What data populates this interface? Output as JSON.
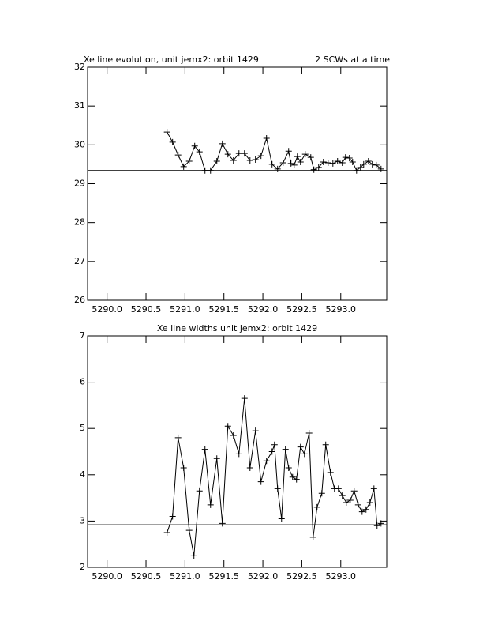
{
  "chart_data": [
    {
      "type": "line",
      "title": "Xe line evolution, unit jemx2: orbit 1429",
      "subtitle": "2 SCWs at a time",
      "x": [
        5290.77,
        5290.841,
        5290.912,
        5290.983,
        5291.054,
        5291.125,
        5291.186,
        5291.257,
        5291.328,
        5291.409,
        5291.48,
        5291.551,
        5291.622,
        5291.693,
        5291.764,
        5291.835,
        5291.905,
        5291.976,
        5292.047,
        5292.118,
        5292.189,
        5292.26,
        5292.331,
        5292.361,
        5292.402,
        5292.443,
        5292.483,
        5292.544,
        5292.615,
        5292.655,
        5292.716,
        5292.777,
        5292.838,
        5292.899,
        5292.959,
        5293.02,
        5293.061,
        5293.111,
        5293.152,
        5293.203,
        5293.253,
        5293.294,
        5293.355,
        5293.405,
        5293.456,
        5293.517
      ],
      "series": [
        {
          "color": "#000000",
          "marker": "plus",
          "values": [
            30.33,
            30.07,
            29.74,
            29.44,
            29.58,
            29.97,
            29.82,
            29.34,
            29.34,
            29.58,
            30.03,
            29.76,
            29.6,
            29.78,
            29.78,
            29.6,
            29.62,
            29.72,
            30.17,
            29.5,
            29.38,
            29.54,
            29.84,
            29.52,
            29.48,
            29.7,
            29.56,
            29.76,
            29.68,
            29.36,
            29.42,
            29.56,
            29.54,
            29.52,
            29.58,
            29.54,
            29.68,
            29.66,
            29.56,
            29.34,
            29.42,
            29.5,
            29.58,
            29.5,
            29.48,
            29.38
          ]
        }
      ],
      "hline": 29.34,
      "xlim": [
        5289.75,
        5293.59
      ],
      "xticks": [
        {
          "value": 5290,
          "label": "5290.0"
        },
        {
          "value": 5290.5,
          "label": "5290.5"
        },
        {
          "value": 5291,
          "label": "5291.0"
        },
        {
          "value": 5291.5,
          "label": "5291.5"
        },
        {
          "value": 5292,
          "label": "5292.0"
        },
        {
          "value": 5292.5,
          "label": "5292.5"
        },
        {
          "value": 5293,
          "label": "5293.0"
        }
      ],
      "ylim": [
        26,
        32
      ],
      "yticks": [
        26,
        27,
        28,
        29,
        30,
        31,
        32
      ]
    },
    {
      "type": "line",
      "title": "Xe line widths unit jemx2: orbit 1429",
      "x": [
        5290.77,
        5290.841,
        5290.912,
        5290.983,
        5291.054,
        5291.115,
        5291.186,
        5291.257,
        5291.328,
        5291.409,
        5291.48,
        5291.551,
        5291.622,
        5291.693,
        5291.764,
        5291.835,
        5291.905,
        5291.976,
        5292.047,
        5292.118,
        5292.149,
        5292.189,
        5292.24,
        5292.29,
        5292.331,
        5292.382,
        5292.432,
        5292.483,
        5292.534,
        5292.594,
        5292.645,
        5292.696,
        5292.757,
        5292.807,
        5292.868,
        5292.919,
        5292.97,
        5293.02,
        5293.071,
        5293.122,
        5293.172,
        5293.223,
        5293.274,
        5293.324,
        5293.375,
        5293.426,
        5293.466,
        5293.517
      ],
      "series": [
        {
          "color": "#000000",
          "marker": "plus",
          "values": [
            2.75,
            3.1,
            4.8,
            4.15,
            2.8,
            2.25,
            3.65,
            4.55,
            3.35,
            4.35,
            2.95,
            5.05,
            4.85,
            4.45,
            5.65,
            4.15,
            4.95,
            3.85,
            4.3,
            4.5,
            4.65,
            3.7,
            3.05,
            4.55,
            4.15,
            3.95,
            3.9,
            4.6,
            4.45,
            4.9,
            2.65,
            3.3,
            3.6,
            4.65,
            4.05,
            3.7,
            3.7,
            3.55,
            3.4,
            3.45,
            3.65,
            3.35,
            3.2,
            3.25,
            3.4,
            3.7,
            2.9,
            2.95
          ]
        }
      ],
      "hline": 2.92,
      "xlim": [
        5289.75,
        5293.59
      ],
      "xticks": [
        {
          "value": 5290,
          "label": "5290.0"
        },
        {
          "value": 5290.5,
          "label": "5290.5"
        },
        {
          "value": 5291,
          "label": "5291.0"
        },
        {
          "value": 5291.5,
          "label": "5291.5"
        },
        {
          "value": 5292,
          "label": "5292.0"
        },
        {
          "value": 5292.5,
          "label": "5292.5"
        },
        {
          "value": 5293,
          "label": "5293.0"
        }
      ],
      "ylim": [
        2,
        7
      ],
      "yticks": [
        2,
        3,
        4,
        5,
        6,
        7
      ]
    }
  ]
}
